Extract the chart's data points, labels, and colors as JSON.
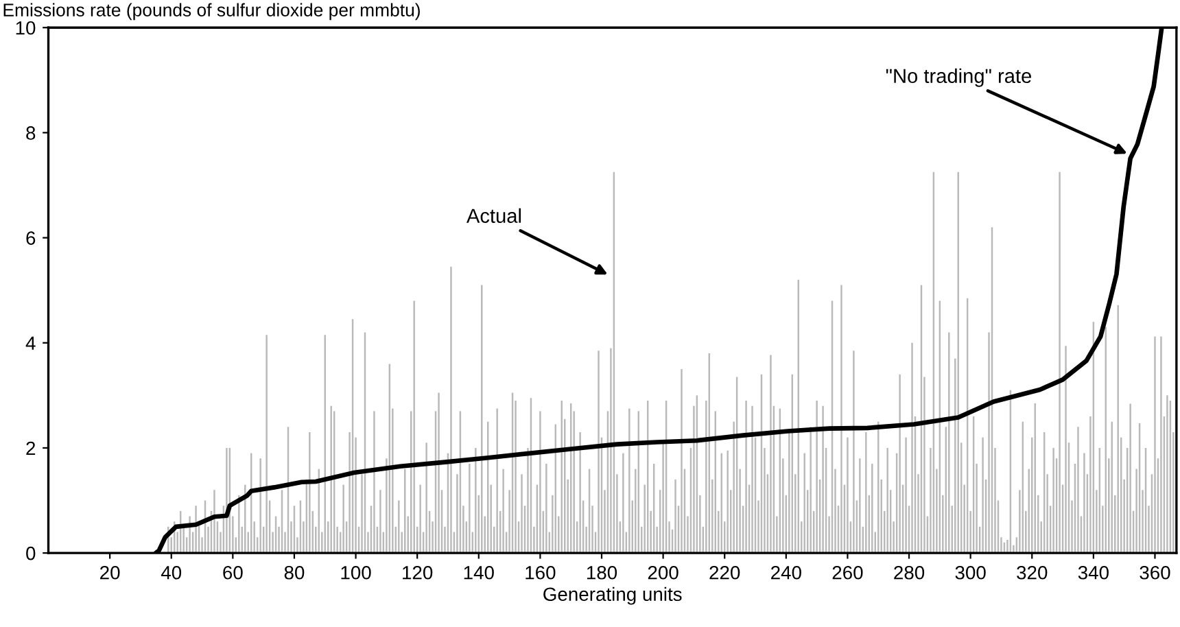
{
  "chart_data": {
    "type": "bar",
    "ylabel": "Emissions rate (pounds of sulfur dioxide per mmbtu)",
    "xlabel": "Generating units",
    "xlim": [
      0,
      367
    ],
    "xticks": [
      20,
      40,
      60,
      80,
      100,
      120,
      140,
      160,
      180,
      200,
      220,
      240,
      260,
      280,
      300,
      320,
      340,
      360
    ],
    "ylim": [
      0,
      10
    ],
    "yticks": [
      0,
      2,
      4,
      6,
      8,
      10
    ],
    "grid": false,
    "legend": false,
    "series": [
      {
        "color": "#b9b9b9",
        "x": [
          39,
          40,
          41,
          42,
          43,
          44,
          45,
          46,
          47,
          48,
          49,
          50,
          51,
          52,
          53,
          54,
          55,
          56,
          57,
          58,
          59,
          60,
          61,
          62,
          63,
          64,
          65,
          66,
          67,
          68,
          69,
          70,
          71,
          72,
          73,
          74,
          75,
          76,
          77,
          78,
          79,
          80,
          81,
          82,
          83,
          84,
          85,
          86,
          87,
          88,
          89,
          90,
          91,
          92,
          93,
          94,
          95,
          96,
          97,
          98,
          99,
          100,
          101,
          102,
          103,
          104,
          105,
          106,
          107,
          108,
          109,
          110,
          111,
          112,
          113,
          114,
          115,
          116,
          117,
          118,
          119,
          120,
          121,
          122,
          123,
          124,
          125,
          126,
          127,
          128,
          129,
          130,
          131,
          132,
          133,
          134,
          135,
          136,
          137,
          138,
          139,
          140,
          141,
          142,
          143,
          144,
          145,
          146,
          147,
          148,
          149,
          150,
          151,
          152,
          153,
          154,
          155,
          156,
          157,
          158,
          159,
          160,
          161,
          162,
          163,
          164,
          165,
          166,
          167,
          168,
          169,
          170,
          171,
          172,
          173,
          174,
          175,
          176,
          177,
          178,
          179,
          180,
          181,
          182,
          183,
          184,
          185,
          186,
          187,
          188,
          189,
          190,
          191,
          192,
          193,
          194,
          195,
          196,
          197,
          198,
          199,
          200,
          201,
          202,
          203,
          204,
          205,
          206,
          207,
          208,
          209,
          210,
          211,
          212,
          213,
          214,
          215,
          216,
          217,
          218,
          219,
          220,
          221,
          222,
          223,
          224,
          225,
          226,
          227,
          228,
          229,
          230,
          231,
          232,
          233,
          234,
          235,
          236,
          237,
          238,
          239,
          240,
          241,
          242,
          243,
          244,
          245,
          246,
          247,
          248,
          249,
          250,
          251,
          252,
          253,
          254,
          255,
          256,
          257,
          258,
          259,
          260,
          261,
          262,
          263,
          264,
          265,
          266,
          267,
          268,
          269,
          270,
          271,
          272,
          273,
          274,
          275,
          276,
          277,
          278,
          279,
          280,
          281,
          282,
          283,
          284,
          285,
          286,
          287,
          288,
          289,
          290,
          291,
          292,
          293,
          294,
          295,
          296,
          297,
          298,
          299,
          300,
          301,
          302,
          303,
          304,
          305,
          306,
          307,
          308,
          309,
          310,
          311,
          312,
          313,
          314,
          315,
          316,
          317,
          318,
          319,
          320,
          321,
          322,
          323,
          324,
          325,
          326,
          327,
          328,
          329,
          330,
          331,
          332,
          333,
          334,
          335,
          336,
          337,
          338,
          339,
          340,
          341,
          342,
          343,
          344,
          345,
          346,
          347,
          348,
          349,
          350,
          351,
          352,
          353,
          354,
          355,
          356,
          357,
          358,
          359,
          360,
          361,
          362,
          363,
          364,
          365,
          366
        ],
        "values": [
          0.5,
          0.3,
          0.6,
          0.4,
          0.8,
          0.5,
          0.3,
          0.7,
          0.4,
          0.9,
          0.6,
          0.3,
          1.0,
          0.5,
          0.8,
          1.2,
          0.6,
          0.4,
          0.9,
          2.0,
          2.0,
          0.7,
          0.3,
          1.1,
          0.5,
          1.3,
          0.4,
          1.9,
          0.6,
          0.3,
          1.8,
          0.5,
          4.15,
          1.0,
          0.4,
          0.7,
          0.5,
          1.2,
          0.4,
          2.4,
          0.6,
          0.9,
          0.3,
          1.0,
          0.6,
          1.4,
          2.3,
          0.8,
          0.5,
          1.6,
          0.4,
          4.15,
          0.6,
          2.8,
          2.7,
          0.5,
          0.4,
          1.3,
          0.6,
          2.3,
          4.45,
          2.2,
          0.5,
          1.5,
          4.2,
          0.4,
          0.9,
          2.7,
          0.5,
          1.2,
          0.4,
          1.8,
          3.6,
          2.75,
          0.5,
          1.0,
          0.4,
          1.6,
          0.7,
          2.7,
          4.8,
          0.5,
          1.3,
          0.4,
          2.1,
          0.8,
          0.6,
          2.7,
          3.05,
          1.2,
          0.5,
          1.9,
          5.45,
          0.4,
          1.5,
          2.7,
          0.9,
          0.6,
          1.7,
          0.4,
          2.0,
          1.1,
          5.1,
          0.7,
          2.5,
          1.3,
          0.5,
          2.75,
          0.8,
          1.6,
          0.4,
          1.2,
          3.05,
          2.9,
          0.6,
          1.5,
          0.9,
          2.0,
          2.95,
          0.5,
          1.3,
          2.7,
          0.8,
          1.7,
          0.4,
          1.1,
          2.45,
          0.7,
          2.9,
          2.55,
          1.4,
          2.85,
          2.7,
          0.6,
          2.3,
          1.0,
          0.5,
          1.6,
          0.9,
          0.4,
          3.85,
          2.2,
          1.2,
          2.7,
          3.9,
          7.25,
          1.5,
          0.6,
          1.9,
          0.4,
          2.75,
          1.0,
          1.6,
          2.7,
          0.5,
          1.3,
          2.9,
          0.8,
          1.7,
          0.5,
          1.2,
          2.1,
          2.9,
          0.6,
          0.45,
          1.4,
          0.9,
          3.5,
          1.6,
          0.7,
          2.0,
          2.8,
          3.0,
          1.1,
          0.5,
          2.9,
          3.8,
          1.4,
          2.7,
          0.8,
          1.9,
          0.6,
          1.95,
          1.2,
          2.5,
          3.35,
          1.6,
          0.9,
          2.9,
          1.3,
          2.8,
          2.2,
          1.0,
          3.4,
          2.0,
          1.5,
          3.77,
          2.8,
          0.7,
          2.75,
          1.8,
          1.1,
          2.3,
          3.4,
          1.5,
          5.2,
          0.6,
          1.9,
          1.2,
          2.4,
          0.8,
          2.9,
          1.4,
          2.8,
          2.0,
          0.7,
          4.8,
          1.6,
          0.9,
          5.1,
          1.3,
          2.2,
          0.6,
          3.85,
          1.0,
          1.8,
          0.5,
          2.3,
          1.1,
          1.7,
          0.4,
          2.5,
          1.4,
          0.8,
          2.0,
          1.2,
          0.6,
          1.9,
          3.4,
          1.3,
          2.2,
          0.9,
          4.0,
          2.6,
          1.5,
          5.1,
          3.35,
          0.7,
          2.0,
          7.25,
          1.6,
          4.8,
          1.1,
          2.4,
          4.2,
          0.9,
          3.7,
          7.25,
          2.1,
          1.3,
          4.85,
          0.8,
          2.6,
          1.7,
          0.5,
          2.2,
          1.4,
          4.2,
          6.2,
          2.0,
          1.0,
          0.3,
          0.2,
          0.25,
          3.1,
          0.15,
          0.3,
          1.2,
          2.5,
          0.8,
          1.6,
          2.2,
          2.85,
          1.1,
          0.6,
          2.3,
          1.5,
          0.9,
          2.0,
          1.8,
          7.25,
          1.3,
          3.94,
          2.1,
          1.0,
          1.7,
          2.4,
          0.7,
          1.9,
          1.5,
          2.6,
          4.4,
          1.2,
          2.0,
          0.9,
          4.3,
          1.8,
          2.5,
          1.1,
          4.72,
          2.2,
          1.4,
          2.0,
          2.84,
          0.8,
          1.6,
          2.47,
          1.2,
          2.0,
          0.9,
          1.5,
          4.12,
          1.8,
          4.12,
          2.6,
          3.0,
          2.9,
          2.3
        ]
      },
      {
        "type": "line",
        "color": "#000000",
        "line_style": "solid",
        "marker": "none",
        "x": [
          35,
          36,
          38,
          41.5,
          48,
          54,
          58,
          59,
          64.6,
          66,
          73.5,
          82.4,
          87,
          99.4,
          114.5,
          129,
          142.6,
          170,
          185,
          198,
          211,
          226,
          240.6,
          254,
          266.5,
          281.6,
          296,
          307.5,
          322.6,
          330,
          337.7,
          342.3,
          345.2,
          347.5,
          349.8,
          352,
          354.3,
          357.4,
          359.6,
          361.1,
          362.2
        ],
        "values": [
          0,
          0.05,
          0.3,
          0.5,
          0.54,
          0.69,
          0.71,
          0.9,
          1.09,
          1.18,
          1.25,
          1.35,
          1.36,
          1.53,
          1.65,
          1.73,
          1.81,
          1.98,
          2.07,
          2.11,
          2.14,
          2.24,
          2.32,
          2.37,
          2.38,
          2.45,
          2.58,
          2.88,
          3.11,
          3.3,
          3.66,
          4.12,
          4.76,
          5.31,
          6.59,
          7.51,
          7.78,
          8.42,
          8.88,
          9.52,
          10
        ]
      }
    ],
    "annotations": [
      {
        "text": "Actual",
        "x": 182,
        "y": 5.3
      },
      {
        "text": "\"No trading\" rate",
        "x": 351,
        "y": 7.6
      }
    ]
  }
}
